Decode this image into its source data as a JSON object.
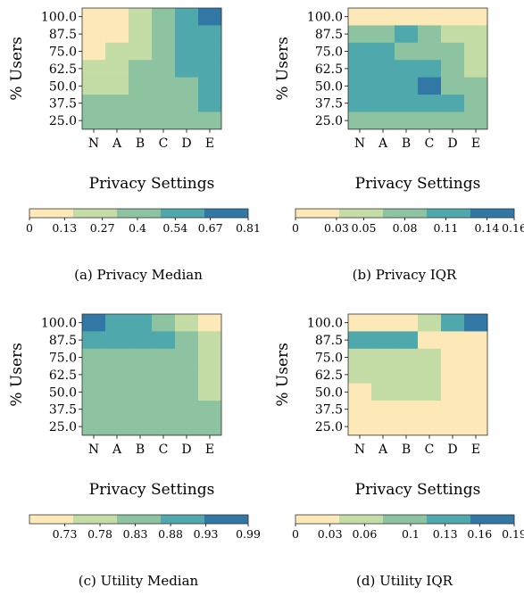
{
  "palette": [
    "#fde8b7",
    "#c4dca5",
    "#8dc3a0",
    "#4fa8ab",
    "#3178a6"
  ],
  "chart_data": [
    {
      "type": "heatmap",
      "caption": "(a) Privacy Median",
      "xlabel": "Privacy Settings",
      "ylabel": "% Users",
      "x": [
        "N",
        "A",
        "B",
        "C",
        "D",
        "E"
      ],
      "y": [
        "100.0",
        "87.5",
        "75.0",
        "62.5",
        "50.0",
        "37.5",
        "25.0"
      ],
      "bins": [
        0,
        0.13,
        0.27,
        0.4,
        0.54,
        0.67,
        0.81
      ],
      "colorbar_ticks": [
        "0",
        "0.13",
        "0.27",
        "0.4",
        "0.54",
        "0.67",
        "0.81"
      ],
      "values": [
        [
          0,
          0,
          1,
          2,
          3,
          4
        ],
        [
          0,
          0,
          1,
          2,
          3,
          3
        ],
        [
          0,
          1,
          1,
          2,
          3,
          3
        ],
        [
          1,
          1,
          2,
          2,
          3,
          3
        ],
        [
          1,
          1,
          2,
          2,
          2,
          3
        ],
        [
          2,
          2,
          2,
          2,
          2,
          3
        ],
        [
          2,
          2,
          2,
          2,
          2,
          2
        ]
      ]
    },
    {
      "type": "heatmap",
      "caption": "(b) Privacy IQR",
      "xlabel": "Privacy Settings",
      "ylabel": "% Users",
      "x": [
        "N",
        "A",
        "B",
        "C",
        "D",
        "E"
      ],
      "y": [
        "100.0",
        "87.5",
        "75.0",
        "62.5",
        "50.0",
        "37.5",
        "25.0"
      ],
      "bins": [
        0,
        0.03,
        0.05,
        0.08,
        0.11,
        0.14,
        0.16
      ],
      "colorbar_ticks": [
        "0",
        "0.03",
        "0.05",
        "0.08",
        "0.11",
        "0.14",
        "0.16"
      ],
      "values": [
        [
          0,
          0,
          0,
          0,
          0,
          0
        ],
        [
          2,
          2,
          3,
          2,
          1,
          1
        ],
        [
          3,
          3,
          2,
          2,
          2,
          1
        ],
        [
          3,
          3,
          3,
          3,
          2,
          1
        ],
        [
          3,
          3,
          3,
          4,
          2,
          2
        ],
        [
          3,
          3,
          3,
          3,
          3,
          2
        ],
        [
          2,
          2,
          2,
          2,
          2,
          2
        ]
      ]
    },
    {
      "type": "heatmap",
      "caption": "(c) Utility Median",
      "xlabel": "Privacy Settings",
      "ylabel": "% Users",
      "x": [
        "N",
        "A",
        "B",
        "C",
        "D",
        "E"
      ],
      "y": [
        "100.0",
        "87.5",
        "75.0",
        "62.5",
        "50.0",
        "37.5",
        "25.0"
      ],
      "bins": [
        0.68,
        0.73,
        0.78,
        0.83,
        0.88,
        0.93,
        0.99
      ],
      "colorbar_ticks": [
        "",
        "0.73",
        "0.78",
        "0.83",
        "0.88",
        "0.93",
        "0.99"
      ],
      "values": [
        [
          4,
          3,
          3,
          2,
          1,
          0
        ],
        [
          3,
          3,
          3,
          3,
          2,
          1
        ],
        [
          2,
          2,
          2,
          2,
          2,
          1
        ],
        [
          2,
          2,
          2,
          2,
          2,
          1
        ],
        [
          2,
          2,
          2,
          2,
          2,
          1
        ],
        [
          2,
          2,
          2,
          2,
          2,
          2
        ],
        [
          2,
          2,
          2,
          2,
          2,
          2
        ]
      ]
    },
    {
      "type": "heatmap",
      "caption": "(d) Utility IQR",
      "xlabel": "Privacy Settings",
      "ylabel": "% Users",
      "x": [
        "N",
        "A",
        "B",
        "C",
        "D",
        "E"
      ],
      "y": [
        "100.0",
        "87.5",
        "75.0",
        "62.5",
        "50.0",
        "37.5",
        "25.0"
      ],
      "bins": [
        0,
        0.03,
        0.06,
        0.1,
        0.13,
        0.16,
        0.19
      ],
      "colorbar_ticks": [
        "0",
        "0.03",
        "0.06",
        "0.1",
        "0.13",
        "0.16",
        "0.19"
      ],
      "values": [
        [
          0,
          0,
          0,
          1,
          3,
          4
        ],
        [
          3,
          3,
          3,
          0,
          0,
          0
        ],
        [
          1,
          1,
          1,
          1,
          0,
          0
        ],
        [
          1,
          1,
          1,
          1,
          0,
          0
        ],
        [
          0,
          1,
          1,
          1,
          0,
          0
        ],
        [
          0,
          0,
          0,
          0,
          0,
          0
        ],
        [
          0,
          0,
          0,
          0,
          0,
          0
        ]
      ]
    }
  ]
}
